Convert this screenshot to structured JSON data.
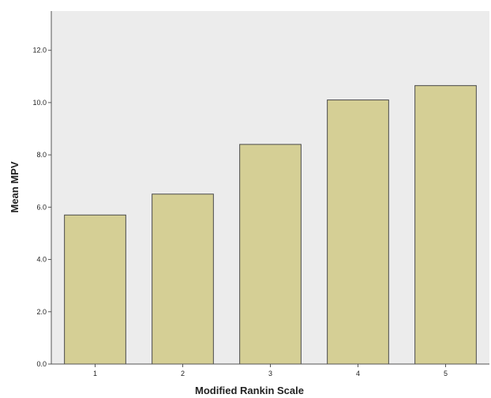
{
  "chart_data": {
    "type": "bar",
    "title": "",
    "xlabel": "Modified Rankin Scale",
    "ylabel": "Mean MPV",
    "categories": [
      "1",
      "2",
      "3",
      "4",
      "5"
    ],
    "values": [
      5.7,
      6.5,
      8.4,
      10.1,
      10.65
    ],
    "ylim": [
      0,
      13.5
    ],
    "y_ticks": [
      "0.0",
      "2.0",
      "4.0",
      "6.0",
      "8.0",
      "10.0",
      "12.0"
    ],
    "grid": false,
    "legend": "none",
    "colors": {
      "plot_background": "#ececec",
      "bar_fill": "#d5cf95",
      "bar_stroke": "#4a4a4a",
      "axis": "#555555"
    }
  }
}
